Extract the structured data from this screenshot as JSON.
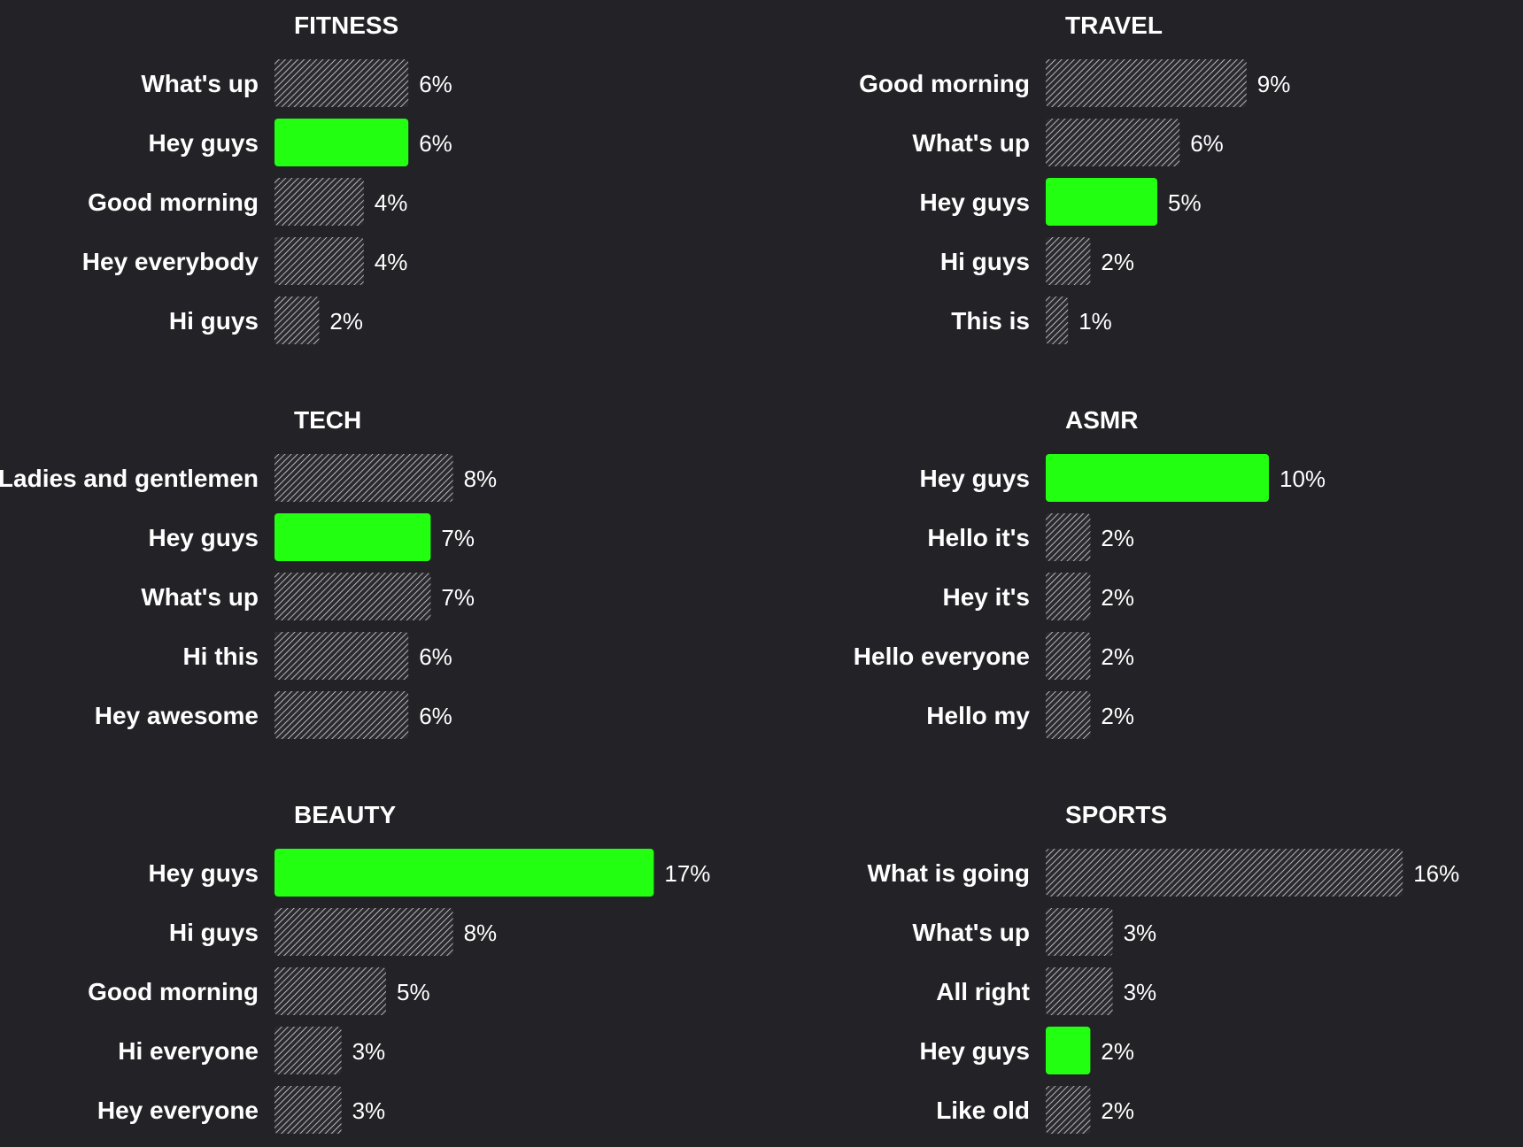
{
  "colors": {
    "background": "#222227",
    "highlight": "#22ff11",
    "hatch_line": "#d9d9d9",
    "hatch_bg": "#2a2a2f",
    "text": "#ffffff"
  },
  "chart_data": [
    {
      "type": "bar",
      "orientation": "horizontal",
      "title": "FITNESS",
      "highlight": "Hey guys",
      "categories": [
        "What's up",
        "Hey guys",
        "Good morning",
        "Hey everybody",
        "Hi guys"
      ],
      "values": [
        6,
        6,
        4,
        4,
        2
      ],
      "value_labels": [
        "6%",
        "6%",
        "4%",
        "4%",
        "2%"
      ]
    },
    {
      "type": "bar",
      "orientation": "horizontal",
      "title": "TRAVEL",
      "highlight": "Hey guys",
      "categories": [
        "Good morning",
        "What's up",
        "Hey guys",
        "Hi guys",
        "This is"
      ],
      "values": [
        9,
        6,
        5,
        2,
        1
      ],
      "value_labels": [
        "9%",
        "6%",
        "5%",
        "2%",
        "1%"
      ]
    },
    {
      "type": "bar",
      "orientation": "horizontal",
      "title": "TECH",
      "highlight": "Hey guys",
      "categories": [
        "Ladies and gentlemen",
        "Hey guys",
        "What's up",
        "Hi this",
        "Hey awesome"
      ],
      "values": [
        8,
        7,
        7,
        6,
        6
      ],
      "value_labels": [
        "8%",
        "7%",
        "7%",
        "6%",
        "6%"
      ]
    },
    {
      "type": "bar",
      "orientation": "horizontal",
      "title": "ASMR",
      "highlight": "Hey guys",
      "categories": [
        "Hey guys",
        "Hello it's",
        "Hey it's",
        "Hello everyone",
        "Hello my"
      ],
      "values": [
        10,
        2,
        2,
        2,
        2
      ],
      "value_labels": [
        "10%",
        "2%",
        "2%",
        "2%",
        "2%"
      ]
    },
    {
      "type": "bar",
      "orientation": "horizontal",
      "title": "BEAUTY",
      "highlight": "Hey guys",
      "categories": [
        "Hey guys",
        "Hi guys",
        "Good morning",
        "Hi everyone",
        "Hey everyone"
      ],
      "values": [
        17,
        8,
        5,
        3,
        3
      ],
      "value_labels": [
        "17%",
        "8%",
        "5%",
        "3%",
        "3%"
      ]
    },
    {
      "type": "bar",
      "orientation": "horizontal",
      "title": "SPORTS",
      "highlight": "Hey guys",
      "categories": [
        "What is going",
        "What's up",
        "All right",
        "Hey guys",
        "Like old"
      ],
      "values": [
        16,
        3,
        3,
        2,
        2
      ],
      "value_labels": [
        "16%",
        "3%",
        "3%",
        "2%",
        "2%"
      ]
    }
  ]
}
